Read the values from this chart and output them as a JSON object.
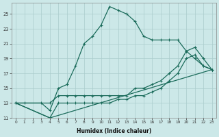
{
  "xlabel": "Humidex (Indice chaleur)",
  "bg_color": "#cce8e8",
  "grid_color": "#aacccc",
  "line_color": "#1a6b5a",
  "xlim": [
    -0.5,
    23.5
  ],
  "ylim": [
    11,
    26.5
  ],
  "xticks": [
    0,
    1,
    2,
    3,
    4,
    5,
    6,
    7,
    8,
    9,
    10,
    11,
    12,
    13,
    14,
    15,
    16,
    17,
    18,
    19,
    20,
    21,
    22,
    23
  ],
  "yticks": [
    11,
    13,
    15,
    17,
    19,
    21,
    23,
    25
  ],
  "series1_x": [
    0,
    1,
    3,
    4,
    5,
    6,
    7,
    8,
    9,
    10,
    11,
    12,
    13,
    14,
    15,
    16,
    17,
    18,
    19,
    20,
    21,
    22,
    23
  ],
  "series1_y": [
    13,
    13,
    13,
    12,
    15,
    15.5,
    18,
    21,
    22,
    23.5,
    26,
    25.5,
    25,
    24,
    22,
    21.5,
    21.5,
    21.5,
    21.5,
    20,
    19,
    18,
    17.5
  ],
  "series2_x": [
    0,
    4,
    5,
    6,
    7,
    8,
    9,
    10,
    11,
    12,
    13,
    14,
    15,
    16,
    17,
    18,
    19,
    20,
    21,
    22,
    23
  ],
  "series2_y": [
    13,
    13,
    14,
    14,
    14,
    14,
    14,
    14,
    14,
    14,
    14,
    15,
    15,
    15.5,
    16,
    17,
    18,
    20,
    20.5,
    19,
    17.5
  ],
  "series3_x": [
    0,
    4,
    5,
    6,
    7,
    8,
    9,
    10,
    11,
    12,
    13,
    14,
    15,
    16,
    17,
    18,
    19,
    20,
    21,
    22,
    23
  ],
  "series3_y": [
    13,
    11,
    13,
    13,
    13,
    13,
    13,
    13,
    13,
    13.5,
    13.5,
    14,
    14,
    14.5,
    15,
    16,
    17,
    19,
    19.5,
    18,
    17.5
  ],
  "series4_x": [
    0,
    4,
    23
  ],
  "series4_y": [
    13,
    11,
    17.5
  ]
}
